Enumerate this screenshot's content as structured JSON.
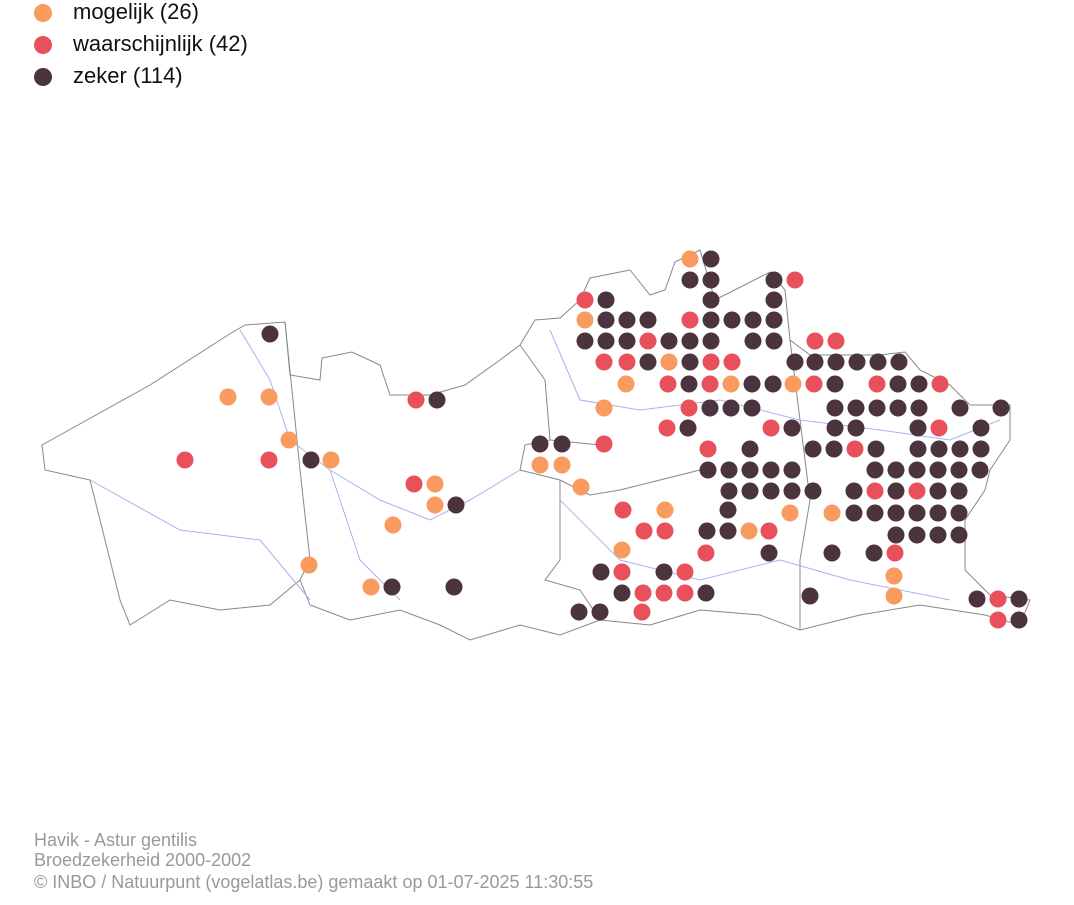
{
  "legend": {
    "items": [
      {
        "label": "mogelijk (26)",
        "color": "#f99a5e"
      },
      {
        "label": "waarschijnlijk (42)",
        "color": "#e8505b"
      },
      {
        "label": "zeker (114)",
        "color": "#4b343d"
      }
    ]
  },
  "footer": {
    "lines": [
      "Havik - Astur gentilis",
      "Broedzekerheid 2000-2002",
      "© INBO / Natuurpunt (vogelatlas.be) gemaakt op 01-07-2025 11:30:55"
    ]
  }
}
